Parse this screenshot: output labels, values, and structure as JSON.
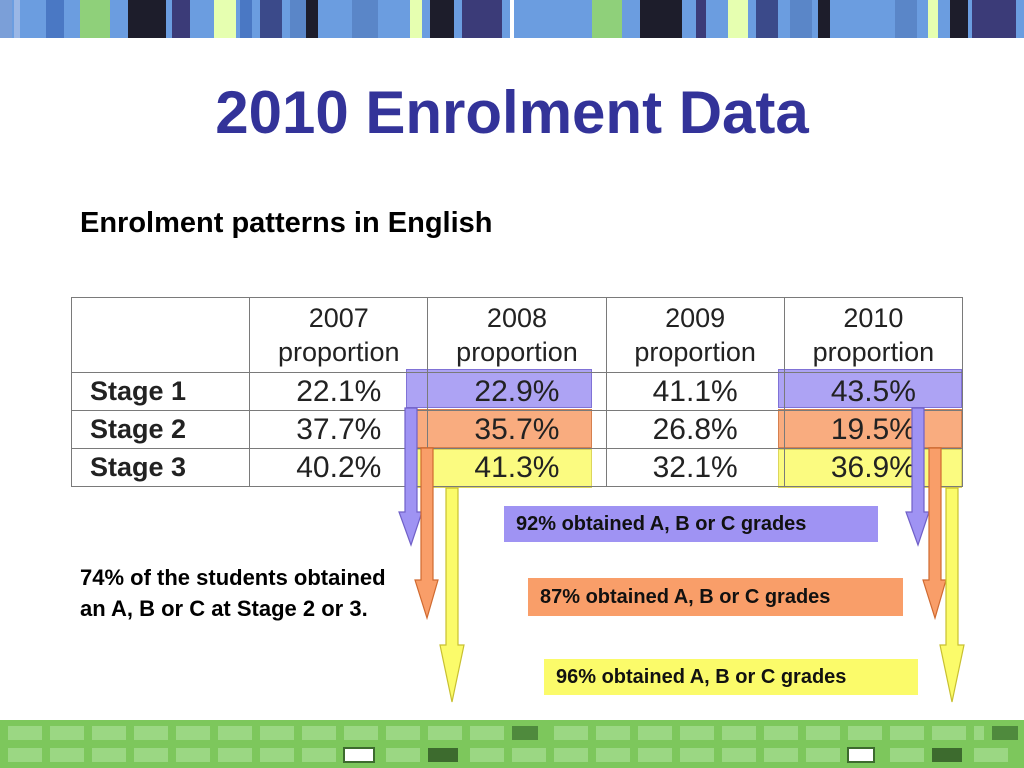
{
  "title": "2010 Enrolment Data",
  "subtitle": "Enrolment patterns in English",
  "table": {
    "headers": [
      [
        "2007",
        "proportion"
      ],
      [
        "2008",
        "proportion"
      ],
      [
        "2009",
        "proportion"
      ],
      [
        "2010",
        "proportion"
      ]
    ],
    "rows": [
      {
        "stage": "Stage 1",
        "values": [
          "22.1%",
          "22.9%",
          "41.1%",
          "43.5%"
        ]
      },
      {
        "stage": "Stage 2",
        "values": [
          "37.7%",
          "35.7%",
          "26.8%",
          "19.5%"
        ]
      },
      {
        "stage": "Stage 3",
        "values": [
          "40.2%",
          "41.3%",
          "32.1%",
          "36.9%"
        ]
      }
    ]
  },
  "highlight_colors": {
    "stage1": "#9f93f3",
    "stage2": "#f99e69",
    "stage3": "#fbfb6a"
  },
  "callouts": {
    "stage1": "92% obtained A, B or C grades",
    "stage2": "87% obtained A, B or C grades",
    "stage3": "96% obtained A, B or C grades"
  },
  "note": "74% of the students obtained an A, B or C at Stage 2 or 3.",
  "colors": {
    "title": "#333399",
    "bottom_band": "#7dc75c"
  }
}
